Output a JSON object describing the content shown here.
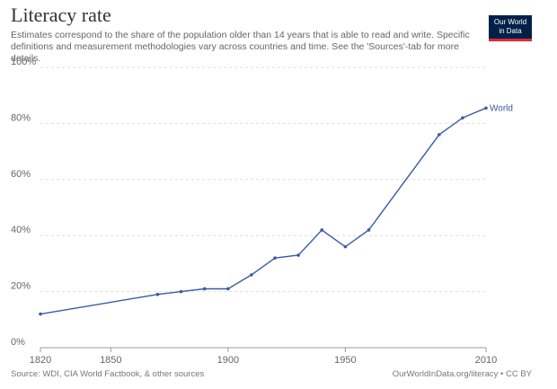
{
  "header": {
    "title": "Literacy rate",
    "subtitle": "Estimates correspond to the share of the population older than 14 years that is able to read and write. Specific definitions and measurement methodologies vary across countries and time. See the 'Sources'-tab for more details.",
    "logo_line1": "Our World",
    "logo_line2": "in Data"
  },
  "footer": {
    "source": "Source: WDI, CIA World Factbook, & other sources",
    "credit": "OurWorldInData.org/literacy • CC BY"
  },
  "colors": {
    "series": "#3b5ba5",
    "grid": "#dddddd",
    "axis": "#999999",
    "logo_bg": "#002147",
    "logo_accent": "#e02b35"
  },
  "chart_data": {
    "type": "line",
    "title": "Literacy rate",
    "xlabel": "",
    "ylabel": "",
    "xlim": [
      1820,
      2010
    ],
    "ylim": [
      0,
      100
    ],
    "x_ticks": [
      "1820",
      "1850",
      "1900",
      "1950",
      "2010"
    ],
    "x_tick_values": [
      1820,
      1850,
      1900,
      1950,
      2010
    ],
    "y_ticks": [
      "0%",
      "20%",
      "40%",
      "60%",
      "80%",
      "100%"
    ],
    "y_tick_values": [
      0,
      20,
      40,
      60,
      80,
      100
    ],
    "grid": true,
    "series": [
      {
        "name": "World",
        "x": [
          1820,
          1870,
          1880,
          1890,
          1900,
          1910,
          1920,
          1930,
          1940,
          1950,
          1960,
          1990,
          2000,
          2010
        ],
        "values": [
          12,
          19,
          20,
          21,
          21,
          26,
          32,
          33,
          42,
          36,
          42,
          76,
          82,
          85.5
        ]
      }
    ]
  }
}
